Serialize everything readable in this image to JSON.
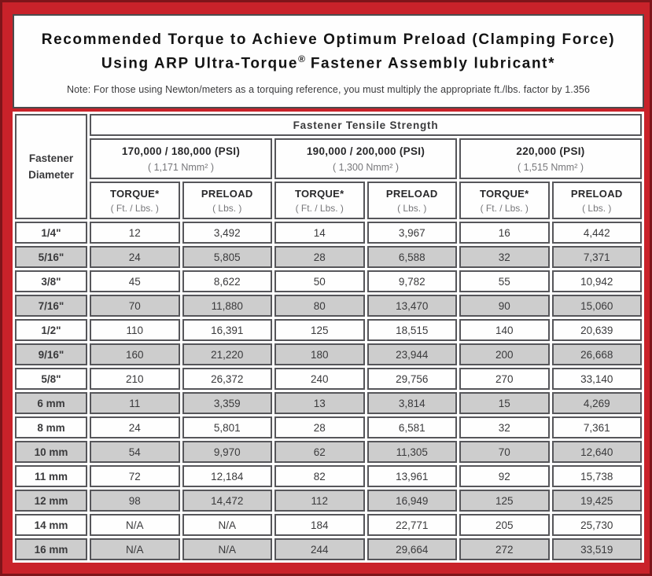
{
  "title": {
    "line1": "Recommended Torque to Achieve Optimum Preload (Clamping Force)",
    "line2_pre": "Using ARP Ultra-Torque",
    "line2_sup": "®",
    "line2_post": " Fastener Assembly lubricant*",
    "note": "Note: For those using Newton/meters as a torquing reference, you must multiply the appropriate ft./lbs. factor by 1.356"
  },
  "colors": {
    "frame_red": "#c9222a",
    "frame_edge_dark": "#7e151a",
    "cell_gray": "#cdcdcd",
    "cell_border": "#56565a"
  },
  "table": {
    "group_header": "Fastener Tensile Strength",
    "corner_header": {
      "line1": "Fastener",
      "line2": "Diameter"
    },
    "strength_groups": [
      {
        "psi": "170,000 / 180,000 (PSI)",
        "nmm": "( 1,171 Nmm² )"
      },
      {
        "psi": "190,000 / 200,000 (PSI)",
        "nmm": "( 1,300 Nmm² )"
      },
      {
        "psi": "220,000 (PSI)",
        "nmm": "( 1,515 Nmm² )"
      }
    ],
    "col_headers": {
      "torque_label": "TORQUE*",
      "torque_unit": "( Ft. / Lbs. )",
      "preload_label": "PRELOAD",
      "preload_unit": "( Lbs. )"
    },
    "rows": [
      {
        "diameter": "1/4\"",
        "values": [
          "12",
          "3,492",
          "14",
          "3,967",
          "16",
          "4,442"
        ]
      },
      {
        "diameter": "5/16\"",
        "values": [
          "24",
          "5,805",
          "28",
          "6,588",
          "32",
          "7,371"
        ]
      },
      {
        "diameter": "3/8\"",
        "values": [
          "45",
          "8,622",
          "50",
          "9,782",
          "55",
          "10,942"
        ]
      },
      {
        "diameter": "7/16\"",
        "values": [
          "70",
          "11,880",
          "80",
          "13,470",
          "90",
          "15,060"
        ]
      },
      {
        "diameter": "1/2\"",
        "values": [
          "110",
          "16,391",
          "125",
          "18,515",
          "140",
          "20,639"
        ]
      },
      {
        "diameter": "9/16\"",
        "values": [
          "160",
          "21,220",
          "180",
          "23,944",
          "200",
          "26,668"
        ]
      },
      {
        "diameter": "5/8\"",
        "values": [
          "210",
          "26,372",
          "240",
          "29,756",
          "270",
          "33,140"
        ]
      },
      {
        "diameter": "6 mm",
        "values": [
          "11",
          "3,359",
          "13",
          "3,814",
          "15",
          "4,269"
        ]
      },
      {
        "diameter": "8 mm",
        "values": [
          "24",
          "5,801",
          "28",
          "6,581",
          "32",
          "7,361"
        ]
      },
      {
        "diameter": "10 mm",
        "values": [
          "54",
          "9,970",
          "62",
          "11,305",
          "70",
          "12,640"
        ]
      },
      {
        "diameter": "11 mm",
        "values": [
          "72",
          "12,184",
          "82",
          "13,961",
          "92",
          "15,738"
        ]
      },
      {
        "diameter": "12 mm",
        "values": [
          "98",
          "14,472",
          "112",
          "16,949",
          "125",
          "19,425"
        ]
      },
      {
        "diameter": "14 mm",
        "values": [
          "N/A",
          "N/A",
          "184",
          "22,771",
          "205",
          "25,730"
        ]
      },
      {
        "diameter": "16 mm",
        "values": [
          "N/A",
          "N/A",
          "244",
          "29,664",
          "272",
          "33,519"
        ]
      }
    ]
  }
}
